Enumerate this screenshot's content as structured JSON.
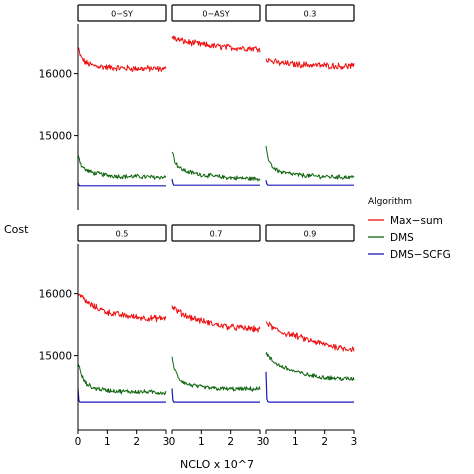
{
  "chart_data": {
    "type": "line",
    "xlabel": "NCLO x 10^7",
    "ylabel": "Cost",
    "xlim": [
      0,
      3
    ],
    "ylim": [
      13800,
      16800
    ],
    "x_ticks": [
      0,
      1,
      2,
      3
    ],
    "y_ticks": [
      15000,
      16000
    ],
    "grid": false,
    "legend": {
      "title": "Algorithm",
      "position": "right",
      "entries": [
        "Max−sum",
        "DMS",
        "DMS−SCFG"
      ]
    },
    "colors": {
      "Max-sum": "#ee1111",
      "DMS": "#116611",
      "DMS-SCFG": "#1a1ab8"
    },
    "panels": [
      {
        "label": "0−SY",
        "series": [
          {
            "name": "Max−sum",
            "x": [
              0,
              0.1,
              0.25,
              0.5,
              1.0,
              1.5,
              2.0,
              2.5,
              3.0
            ],
            "y": [
              16420,
              16260,
              16180,
              16130,
              16100,
              16090,
              16080,
              16080,
              16070
            ]
          },
          {
            "name": "DMS",
            "x": [
              0,
              0.1,
              0.25,
              0.5,
              1.0,
              1.5,
              2.0,
              2.5,
              3.0
            ],
            "y": [
              14720,
              14530,
              14450,
              14400,
              14360,
              14340,
              14340,
              14330,
              14330
            ]
          },
          {
            "name": "DMS−SCFG",
            "x": [
              0,
              0.03,
              0.06,
              0.1,
              3.0
            ],
            "y": [
              14240,
              14200,
              14190,
              14190,
              14190
            ]
          }
        ]
      },
      {
        "label": "0−ASY",
        "series": [
          {
            "name": "Max−sum",
            "x": [
              0,
              0.1,
              0.25,
              0.5,
              1.0,
              1.5,
              2.0,
              2.5,
              3.0
            ],
            "y": [
              16600,
              16560,
              16540,
              16510,
              16470,
              16440,
              16420,
              16410,
              16400
            ]
          },
          {
            "name": "DMS",
            "x": [
              0,
              0.1,
              0.25,
              0.5,
              1.0,
              1.5,
              2.0,
              2.5,
              3.0
            ],
            "y": [
              14760,
              14580,
              14480,
              14420,
              14370,
              14340,
              14320,
              14310,
              14300
            ]
          },
          {
            "name": "DMS−SCFG",
            "x": [
              0,
              0.03,
              0.06,
              0.1,
              3.0
            ],
            "y": [
              14300,
              14230,
              14200,
              14200,
              14200
            ]
          }
        ]
      },
      {
        "label": "0.3",
        "series": [
          {
            "name": "Max−sum",
            "x": [
              0,
              0.1,
              0.25,
              0.5,
              1.0,
              1.5,
              2.0,
              2.5,
              3.0
            ],
            "y": [
              16250,
              16220,
              16190,
              16170,
              16150,
              16140,
              16130,
              16120,
              16120
            ]
          },
          {
            "name": "DMS",
            "x": [
              0,
              0.1,
              0.25,
              0.5,
              1.0,
              1.5,
              2.0,
              2.5,
              3.0
            ],
            "y": [
              14800,
              14600,
              14480,
              14410,
              14370,
              14350,
              14340,
              14330,
              14330
            ]
          },
          {
            "name": "DMS−SCFG",
            "x": [
              0,
              0.03,
              0.06,
              0.1,
              3.0
            ],
            "y": [
              14280,
              14220,
              14200,
              14200,
              14200
            ]
          }
        ]
      },
      {
        "label": "0.5",
        "series": [
          {
            "name": "Max−sum",
            "x": [
              0,
              0.1,
              0.25,
              0.5,
              1.0,
              1.5,
              2.0,
              2.5,
              3.0
            ],
            "y": [
              16030,
              15960,
              15880,
              15800,
              15700,
              15650,
              15620,
              15600,
              15600
            ]
          },
          {
            "name": "DMS",
            "x": [
              0,
              0.1,
              0.25,
              0.5,
              1.0,
              1.5,
              2.0,
              2.5,
              3.0
            ],
            "y": [
              14900,
              14700,
              14560,
              14480,
              14440,
              14420,
              14420,
              14410,
              14400
            ]
          },
          {
            "name": "DMS−SCFG",
            "x": [
              0,
              0.03,
              0.06,
              0.1,
              3.0
            ],
            "y": [
              14470,
              14280,
              14250,
              14250,
              14250
            ]
          }
        ]
      },
      {
        "label": "0.7",
        "series": [
          {
            "name": "Max−sum",
            "x": [
              0,
              0.1,
              0.25,
              0.5,
              1.0,
              1.5,
              2.0,
              2.5,
              3.0
            ],
            "y": [
              15800,
              15750,
              15700,
              15640,
              15560,
              15500,
              15460,
              15440,
              15420
            ]
          },
          {
            "name": "DMS",
            "x": [
              0,
              0.1,
              0.25,
              0.5,
              1.0,
              1.5,
              2.0,
              2.5,
              3.0
            ],
            "y": [
              14950,
              14760,
              14620,
              14540,
              14490,
              14470,
              14460,
              14460,
              14460
            ]
          },
          {
            "name": "DMS−SCFG",
            "x": [
              0,
              0.03,
              0.06,
              0.1,
              3.0
            ],
            "y": [
              14470,
              14280,
              14250,
              14250,
              14250
            ]
          }
        ]
      },
      {
        "label": "0.9",
        "series": [
          {
            "name": "Max−sum",
            "x": [
              0,
              0.1,
              0.25,
              0.5,
              1.0,
              1.5,
              2.0,
              2.5,
              3.0
            ],
            "y": [
              15550,
              15500,
              15440,
              15380,
              15320,
              15240,
              15180,
              15130,
              15100
            ]
          },
          {
            "name": "DMS",
            "x": [
              0,
              0.1,
              0.25,
              0.5,
              1.0,
              1.5,
              2.0,
              2.5,
              3.0
            ],
            "y": [
              15050,
              14970,
              14900,
              14830,
              14740,
              14680,
              14650,
              14630,
              14620
            ]
          },
          {
            "name": "DMS−SCFG",
            "x": [
              0,
              0.03,
              0.06,
              0.1,
              3.0
            ],
            "y": [
              14740,
              14300,
              14260,
              14250,
              14250
            ]
          }
        ]
      }
    ]
  }
}
